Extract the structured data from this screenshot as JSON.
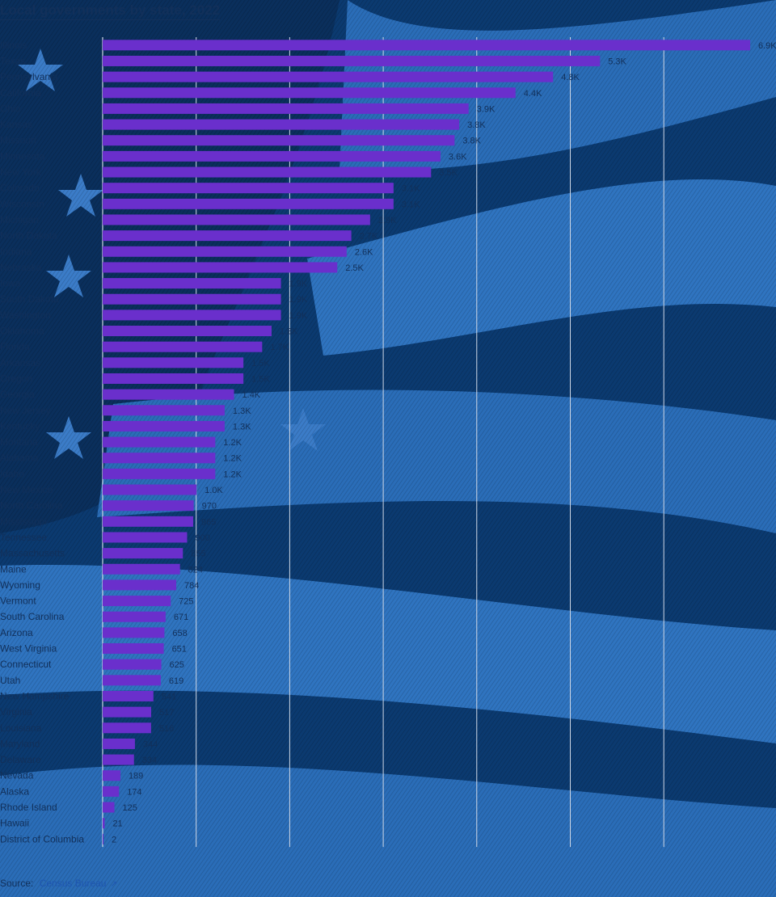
{
  "title": "Local governments by state, 2022",
  "source_label": "Source:",
  "source_link": "Census Bureau",
  "external_link_icon": "external-link-icon",
  "colors": {
    "bar": "#6a2fcc",
    "grid": "#cfd8e6",
    "text": "#12305a",
    "background": "#0b3a70"
  },
  "chart_data": {
    "type": "bar",
    "orientation": "horizontal",
    "categories": [
      "Illinois",
      "Texas",
      "Pennsylvania",
      "California",
      "Ohio",
      "Kansas",
      "Missouri",
      "Minnesota",
      "New York",
      "Colorado",
      "Wisconsin",
      "Michigan",
      "North Dakota",
      "Indiana",
      "Nebraska",
      "Iowa",
      "South Dakota",
      "Washington",
      "Oklahoma",
      "Florida",
      "Arkansas",
      "Oregon",
      "Georgia",
      "New Jersey",
      "Kentucky",
      "Montana",
      "Alabama",
      "Idaho",
      "New Mexico",
      "North Carolina",
      "Mississippi",
      "Tennessee",
      "Massachusetts",
      "Maine",
      "Wyoming",
      "Vermont",
      "South Carolina",
      "Arizona",
      "West Virginia",
      "Connecticut",
      "Utah",
      "New Hampshire",
      "Virginia",
      "Louisiana",
      "Maryland",
      "Delaware",
      "Nevada",
      "Alaska",
      "Rhode Island",
      "Hawaii",
      "District of Columbia"
    ],
    "values": [
      6900,
      5300,
      4800,
      4400,
      3900,
      3800,
      3750,
      3600,
      3500,
      3100,
      3100,
      2850,
      2650,
      2600,
      2500,
      1900,
      1900,
      1900,
      1800,
      1700,
      1500,
      1500,
      1400,
      1300,
      1300,
      1200,
      1200,
      1200,
      1000,
      970,
      965,
      900,
      855,
      824,
      784,
      725,
      671,
      658,
      651,
      625,
      619,
      541,
      517,
      516,
      344,
      334,
      189,
      174,
      125,
      21,
      2
    ],
    "value_labels": [
      "6.9K",
      "5.3K",
      "4.8K",
      "4.4K",
      "3.9K",
      "3.8K",
      "3.8K",
      "3.6K",
      "3.5K",
      "3.1K",
      "3.1K",
      "2.9K",
      "2.7K",
      "2.6K",
      "2.5K",
      "1.9K",
      "1.9K",
      "1.9K",
      "1.8K",
      "1.7K",
      "1.5K",
      "1.5K",
      "1.4K",
      "1.3K",
      "1.3K",
      "1.2K",
      "1.2K",
      "1.2K",
      "1.0K",
      "970",
      "965",
      "900",
      "855",
      "824",
      "784",
      "725",
      "671",
      "658",
      "651",
      "625",
      "619",
      "541",
      "517",
      "516",
      "344",
      "334",
      "189",
      "174",
      "125",
      "21",
      "2"
    ],
    "xlim": [
      0,
      6900
    ],
    "grid": true,
    "xlabel": "",
    "ylabel": ""
  }
}
